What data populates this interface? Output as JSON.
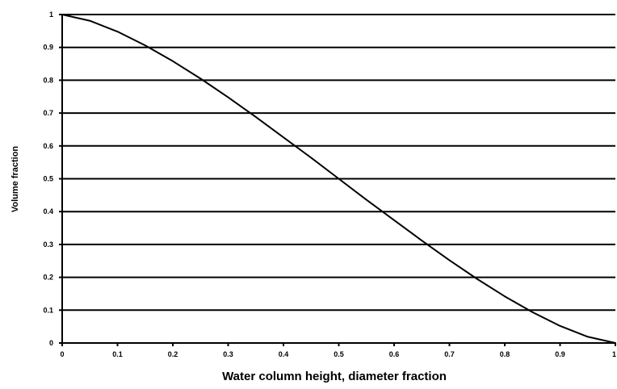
{
  "chart_data": {
    "type": "line",
    "title": "",
    "xlabel": "Water column height, diameter fraction",
    "ylabel": "Volume fraction",
    "xlim": [
      0,
      1
    ],
    "ylim": [
      0,
      1
    ],
    "grid": "horizontal",
    "legend": "none",
    "line_color": "#000000",
    "grid_color": "#000000",
    "x_ticks": [
      0,
      0.1,
      0.2,
      0.3,
      0.4,
      0.5,
      0.6,
      0.7,
      0.8,
      0.9,
      1
    ],
    "x_tick_labels": [
      "0",
      "0.1",
      "0.2",
      "0.3",
      "0.4",
      "0.5",
      "0.6",
      "0.7",
      "0.8",
      "0.9",
      "1"
    ],
    "y_ticks": [
      0,
      0.1,
      0.2,
      0.3,
      0.4,
      0.5,
      0.6,
      0.7,
      0.8,
      0.9,
      1
    ],
    "y_tick_labels": [
      "0",
      "0.1",
      "0.2",
      "0.3",
      "0.4",
      "0.5",
      "0.6",
      "0.7",
      "0.8",
      "0.9",
      "1"
    ],
    "series": [
      {
        "x": [
          0,
          0.05,
          0.1,
          0.15,
          0.2,
          0.25,
          0.3,
          0.35,
          0.4,
          0.45,
          0.5,
          0.55,
          0.6,
          0.65,
          0.7,
          0.75,
          0.8,
          0.85,
          0.9,
          0.95,
          1
        ],
        "y": [
          1,
          0.981,
          0.948,
          0.906,
          0.858,
          0.805,
          0.748,
          0.688,
          0.626,
          0.564,
          0.5,
          0.436,
          0.374,
          0.312,
          0.252,
          0.195,
          0.142,
          0.094,
          0.052,
          0.019,
          0
        ]
      }
    ]
  }
}
